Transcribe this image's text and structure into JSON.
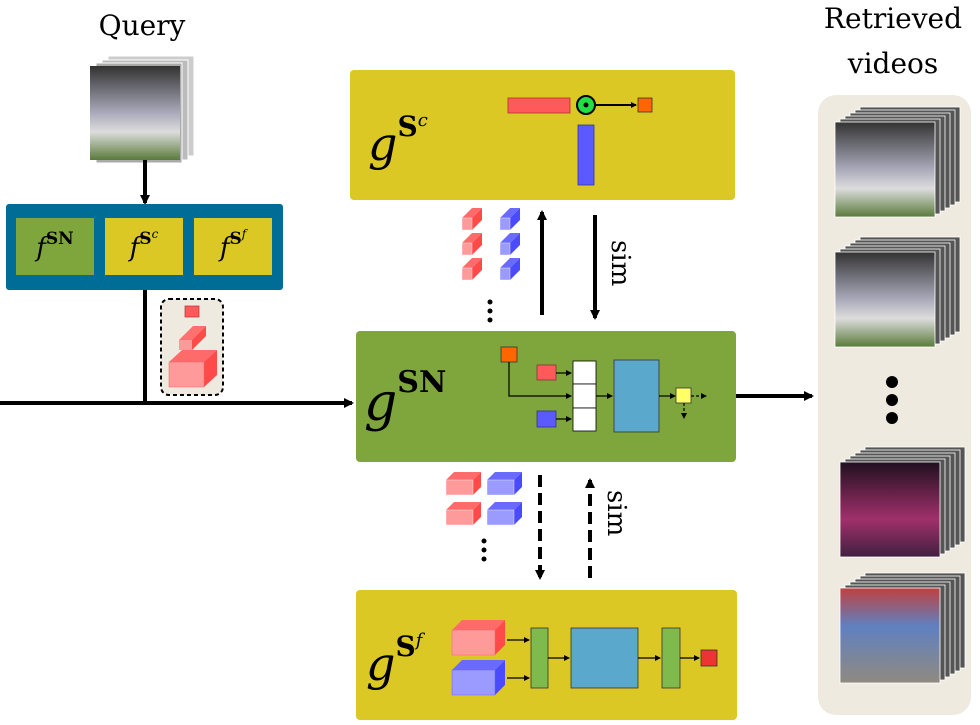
{
  "query": {
    "title": "Query"
  },
  "retrieved": {
    "title_line1": "Retrieved",
    "title_line2": "videos"
  },
  "feature_extractors": [
    {
      "base": "f",
      "sup": "SN",
      "supsup": "",
      "color": "#7fa63c"
    },
    {
      "base": "f",
      "sup": "S",
      "supsup": "c",
      "color": "#dbc824"
    },
    {
      "base": "f",
      "sup": "S",
      "supsup": "f",
      "color": "#dbc824"
    }
  ],
  "modules": {
    "coarse": {
      "base": "g",
      "sup": "S",
      "supsup": "c",
      "color": "#dbc824"
    },
    "selector": {
      "base": "g",
      "sup": "SN",
      "supsup": "",
      "color": "#7fa63c"
    },
    "fine": {
      "base": "g",
      "sup": "S",
      "supsup": "f",
      "color": "#dbc824"
    }
  },
  "labels": {
    "sim_top": "sim",
    "sim_bottom": "sim"
  },
  "colors": {
    "container": "#006d97",
    "panel": "#efeadf",
    "red_feature": "#ff5a5a",
    "blue_feature": "#5a5aff",
    "orange": "#ff6600",
    "model_blue": "#5aa8cc",
    "green_dot": "#22dd44",
    "yellow_out": "#ffff66"
  }
}
